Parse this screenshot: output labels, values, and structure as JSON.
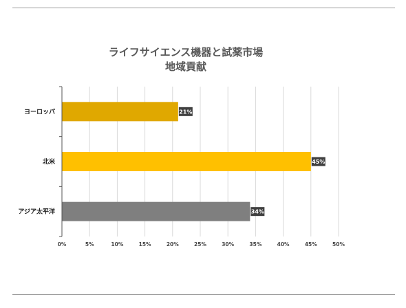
{
  "chart_data": {
    "type": "bar",
    "orientation": "horizontal",
    "title": "ライフサイエンス機器と試薬市場",
    "subtitle": "地域貢献",
    "categories": [
      "ヨーロッパ",
      "北米",
      "アジア太平洋"
    ],
    "values": [
      21,
      45,
      34
    ],
    "data_labels": [
      "21%",
      "45%",
      "34%"
    ],
    "colors": [
      "#e0a800",
      "#ffc000",
      "#7f7f7f"
    ],
    "label_bg_color": "#404040",
    "xlim": [
      0,
      50
    ],
    "x_ticks": [
      "0%",
      "5%",
      "10%",
      "15%",
      "20%",
      "25%",
      "30%",
      "35%",
      "40%",
      "45%",
      "50%"
    ],
    "grid": "vertical",
    "legend": "none"
  }
}
